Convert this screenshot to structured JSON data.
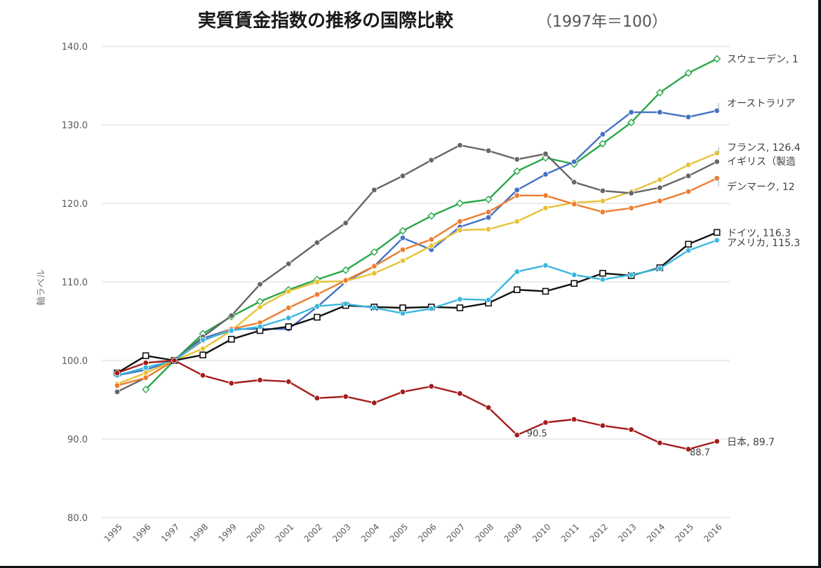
{
  "chart_data": {
    "type": "line",
    "title": "実質賃金指数の推移の国際比較",
    "subtitle": "（1997年＝100）",
    "ylabel": "軸ラベル",
    "xlabel": "",
    "ylim": [
      80,
      140
    ],
    "y_ticks": [
      "80.0",
      "90.0",
      "100.0",
      "110.0",
      "120.0",
      "130.0",
      "140.0"
    ],
    "categories": [
      "1995",
      "1996",
      "1997",
      "1998",
      "1999",
      "2000",
      "2001",
      "2002",
      "2003",
      "2004",
      "2005",
      "2006",
      "2007",
      "2008",
      "2009",
      "2010",
      "2011",
      "2012",
      "2013",
      "2014",
      "2015",
      "2016"
    ],
    "grid": true,
    "series": [
      {
        "name": "スウェーデン",
        "end_label": "スウェーデン, 1",
        "color": "#2aa84a",
        "marker": "diamond",
        "values": [
          null,
          96.3,
          100.0,
          103.4,
          105.6,
          107.5,
          109.0,
          110.3,
          111.5,
          113.8,
          116.5,
          118.4,
          120.0,
          120.5,
          124.1,
          125.8,
          125.0,
          127.6,
          130.3,
          134.1,
          136.6,
          138.4
        ]
      },
      {
        "name": "オーストラリア",
        "end_label": "オーストラリア",
        "color": "#4472c4",
        "marker": "circle",
        "values": [
          98.1,
          98.8,
          100.0,
          102.8,
          104.0,
          104.0,
          104.0,
          106.8,
          110.0,
          112.0,
          115.6,
          114.1,
          117.0,
          118.2,
          121.7,
          123.7,
          125.3,
          128.8,
          131.6,
          131.6,
          131.0,
          131.8
        ]
      },
      {
        "name": "フランス",
        "end_label": "フランス, 126.4",
        "color": "#e8c237",
        "marker": "circle",
        "values": [
          97.0,
          98.4,
          100.0,
          101.5,
          103.8,
          106.8,
          108.8,
          110.0,
          110.1,
          111.1,
          112.7,
          114.6,
          116.6,
          116.7,
          117.7,
          119.4,
          120.1,
          120.3,
          121.5,
          123.0,
          124.9,
          126.4
        ]
      },
      {
        "name": "イギリス",
        "end_label": "イギリス（製造",
        "color": "#666666",
        "marker": "circle",
        "values": [
          96.0,
          97.8,
          100.0,
          103.0,
          105.7,
          109.7,
          112.3,
          115.0,
          117.5,
          121.7,
          123.5,
          125.5,
          127.4,
          126.7,
          125.6,
          126.3,
          122.7,
          121.6,
          121.3,
          122.0,
          123.5,
          125.3
        ]
      },
      {
        "name": "デンマーク",
        "end_label": "デンマーク, 12",
        "color": "#ed7d31",
        "marker": "circle",
        "values": [
          96.8,
          97.8,
          100.0,
          102.5,
          104.0,
          104.8,
          106.7,
          108.4,
          110.2,
          112.0,
          114.1,
          115.4,
          117.7,
          118.9,
          121.0,
          121.0,
          119.9,
          118.9,
          119.4,
          120.3,
          121.5,
          123.2
        ]
      },
      {
        "name": "ドイツ",
        "end_label": "ドイツ, 116.3",
        "color": "#111111",
        "marker": "square",
        "values": [
          98.4,
          100.6,
          100.0,
          100.7,
          102.7,
          103.8,
          104.3,
          105.5,
          107.0,
          106.8,
          106.7,
          106.8,
          106.7,
          107.3,
          109.0,
          108.8,
          109.8,
          111.1,
          110.8,
          111.8,
          114.8,
          116.3
        ]
      },
      {
        "name": "アメリカ",
        "end_label": "アメリカ, 115.3",
        "color": "#3ab7e0",
        "marker": "circle",
        "values": [
          98.1,
          99.1,
          100.0,
          102.6,
          103.8,
          104.3,
          105.4,
          106.9,
          107.2,
          106.7,
          106.0,
          106.6,
          107.8,
          107.7,
          111.3,
          112.1,
          110.9,
          110.3,
          110.9,
          111.7,
          114.0,
          115.3
        ]
      },
      {
        "name": "日本",
        "end_label": "日本, 89.7",
        "color": "#a51c1c",
        "marker": "circle",
        "values": [
          98.4,
          99.7,
          100.0,
          98.1,
          97.1,
          97.5,
          97.3,
          95.2,
          95.4,
          94.6,
          96.0,
          96.7,
          95.8,
          94.0,
          90.5,
          92.1,
          92.5,
          91.7,
          91.2,
          89.5,
          88.7,
          89.7
        ]
      }
    ],
    "annotations": [
      {
        "text": "90.5",
        "series": "日本",
        "category": "2009"
      },
      {
        "text": "88.7",
        "series": "日本",
        "category": "2015"
      }
    ]
  }
}
